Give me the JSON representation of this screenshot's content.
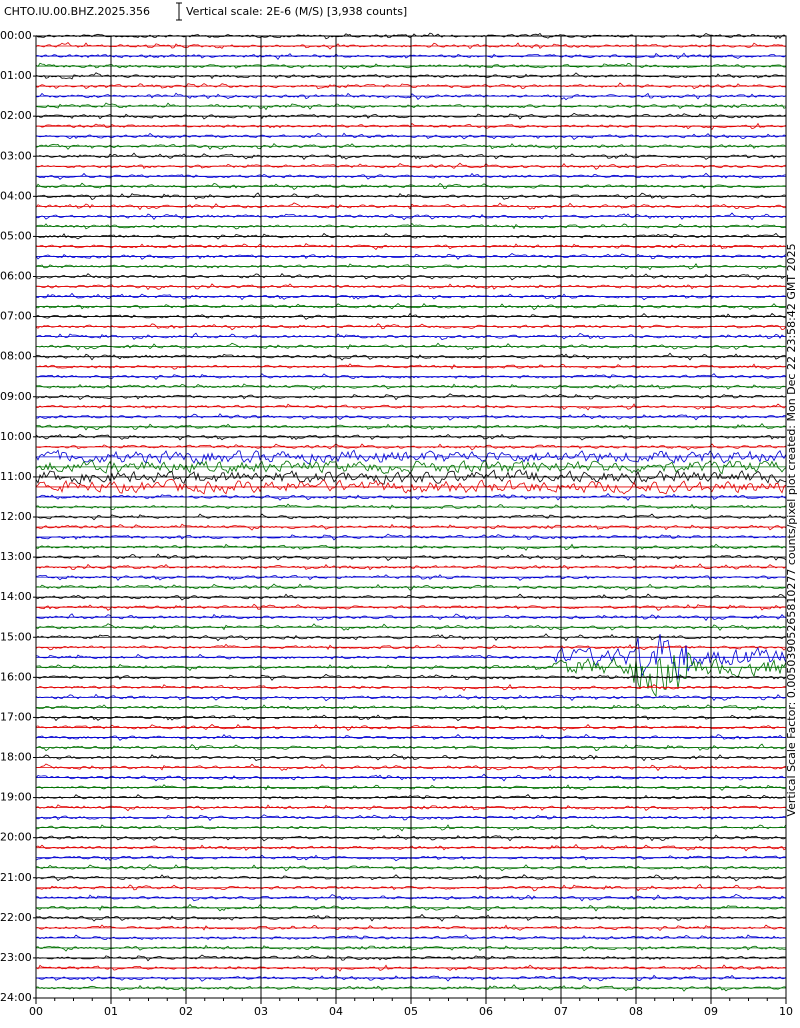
{
  "chart_data": {
    "type": "helicorder",
    "title": "CHTO.IU.00.BHZ.2025.356",
    "subtitle": "Vertical scale: 2E-6 (M/S) [3,938 counts]",
    "annotation": "Vertical Scale Factor: 0.00503905265810277 counts/pixel plot created: Mon Dec 22 23:58:42 GMT 2025",
    "ylim": [
      0,
      24
    ],
    "yticks": [
      {
        "value": 0,
        "label": "00:00"
      },
      {
        "value": 1,
        "label": "01:00"
      },
      {
        "value": 2,
        "label": "02:00"
      },
      {
        "value": 3,
        "label": "03:00"
      },
      {
        "value": 4,
        "label": "04:00"
      },
      {
        "value": 5,
        "label": "05:00"
      },
      {
        "value": 6,
        "label": "06:00"
      },
      {
        "value": 7,
        "label": "07:00"
      },
      {
        "value": 8,
        "label": "08:00"
      },
      {
        "value": 9,
        "label": "09:00"
      },
      {
        "value": 10,
        "label": "10:00"
      },
      {
        "value": 11,
        "label": "11:00"
      },
      {
        "value": 12,
        "label": "12:00"
      },
      {
        "value": 13,
        "label": "13:00"
      },
      {
        "value": 14,
        "label": "14:00"
      },
      {
        "value": 15,
        "label": "15:00"
      },
      {
        "value": 16,
        "label": "16:00"
      },
      {
        "value": 17,
        "label": "17:00"
      },
      {
        "value": 18,
        "label": "18:00"
      },
      {
        "value": 19,
        "label": "19:00"
      },
      {
        "value": 20,
        "label": "20:00"
      },
      {
        "value": 21,
        "label": "21:00"
      },
      {
        "value": 22,
        "label": "22:00"
      },
      {
        "value": 23,
        "label": "23:00"
      },
      {
        "value": 24,
        "label": "24:00"
      }
    ],
    "xlim": [
      0,
      10
    ],
    "xticks": [
      {
        "value": 0,
        "label": "00"
      },
      {
        "value": 1,
        "label": "01"
      },
      {
        "value": 2,
        "label": "02"
      },
      {
        "value": 3,
        "label": "03"
      },
      {
        "value": 4,
        "label": "04"
      },
      {
        "value": 5,
        "label": "05"
      },
      {
        "value": 6,
        "label": "06"
      },
      {
        "value": 7,
        "label": "07"
      },
      {
        "value": 8,
        "label": "08"
      },
      {
        "value": 9,
        "label": "09"
      },
      {
        "value": 10,
        "label": "10"
      }
    ],
    "traces_per_hour": 4,
    "trace_colors": [
      "#000000",
      "#e00000",
      "#0000d0",
      "#007000"
    ],
    "grid": true
  }
}
